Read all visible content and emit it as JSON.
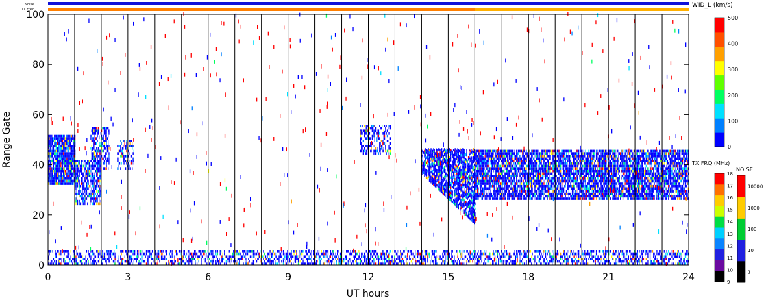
{
  "chart_data": {
    "type": "heatmap",
    "title": "",
    "xlabel": "UT hours",
    "ylabel": "Range Gate",
    "xlim": [
      0,
      24
    ],
    "ylim": [
      0,
      100
    ],
    "x_ticks": [
      "0",
      "3",
      "6",
      "9",
      "12",
      "15",
      "18",
      "21",
      "24"
    ],
    "y_ticks": [
      "0",
      "20",
      "40",
      "60",
      "80",
      "100"
    ],
    "hour_markers": [
      1,
      2,
      3,
      4,
      5,
      6,
      7,
      8,
      9,
      10,
      11,
      12,
      13,
      14,
      15,
      16,
      17,
      18,
      19,
      20,
      21,
      22,
      23
    ],
    "status_strips": {
      "noise_label": "Noise",
      "txfreq_label": "TX Freq",
      "noise_color": "#1010d8",
      "txfreq_segments": [
        {
          "from": 0,
          "to": 16,
          "color": "#ff7f00"
        },
        {
          "from": 16,
          "to": 24,
          "color": "#ffb000"
        }
      ]
    },
    "scatter_regions": [
      {
        "name": "main-band-early",
        "x_range": [
          0.0,
          1.0
        ],
        "gate_range": [
          32,
          52
        ],
        "fill": 0.9
      },
      {
        "name": "main-band-1h",
        "x_range": [
          1.0,
          2.0
        ],
        "gate_range": [
          24,
          42
        ],
        "fill": 0.7
      },
      {
        "name": "patch-2h",
        "x_range": [
          1.6,
          2.3
        ],
        "gate_range": [
          38,
          55
        ],
        "fill": 0.55
      },
      {
        "name": "patch-3h",
        "x_range": [
          2.6,
          3.2
        ],
        "gate_range": [
          38,
          50
        ],
        "fill": 0.4
      },
      {
        "name": "patch-12h",
        "x_range": [
          11.7,
          12.8
        ],
        "gate_range": [
          44,
          56
        ],
        "fill": 0.45
      },
      {
        "name": "diagonal-14-16",
        "x_range": [
          14.0,
          16.0
        ],
        "gate_range": [
          16,
          46
        ],
        "fill": 0.8,
        "shape": "descending"
      },
      {
        "name": "main-band-late",
        "x_range": [
          16.0,
          24.0
        ],
        "gate_range": [
          26,
          46
        ],
        "fill": 0.78
      },
      {
        "name": "ground-scatter",
        "x_range": [
          0.0,
          24.0
        ],
        "gate_range": [
          0,
          6
        ],
        "fill": 0.45
      }
    ],
    "colorbars": [
      {
        "name": "velocity-width",
        "label": "WID_L (km/s)",
        "range": [
          0,
          500
        ],
        "ticks": [
          "0",
          "100",
          "200",
          "300",
          "400",
          "500"
        ],
        "colors": [
          "#0000ff",
          "#0080ff",
          "#00e0ff",
          "#00ff60",
          "#60ff00",
          "#ffff00",
          "#ffa000",
          "#ff5000",
          "#ff0000"
        ]
      },
      {
        "name": "tx-frequency",
        "label": "TX FRQ (MHz)",
        "ticks": [
          "9",
          "10",
          "11",
          "12",
          "13",
          "14",
          "15",
          "16",
          "17",
          "18"
        ],
        "colors": [
          "#000000",
          "#6a0aa0",
          "#2020e0",
          "#0a84ff",
          "#00d0ff",
          "#00dd44",
          "#ccff00",
          "#ffcc00",
          "#ff7000",
          "#ff0000"
        ]
      },
      {
        "name": "noise",
        "label": "NOISE",
        "ticks": [
          "1",
          "10",
          "100",
          "1000",
          "10000"
        ],
        "colors": [
          "#000000",
          "#2020e0",
          "#00cc33",
          "#ffcc00",
          "#ff0000"
        ]
      }
    ]
  }
}
